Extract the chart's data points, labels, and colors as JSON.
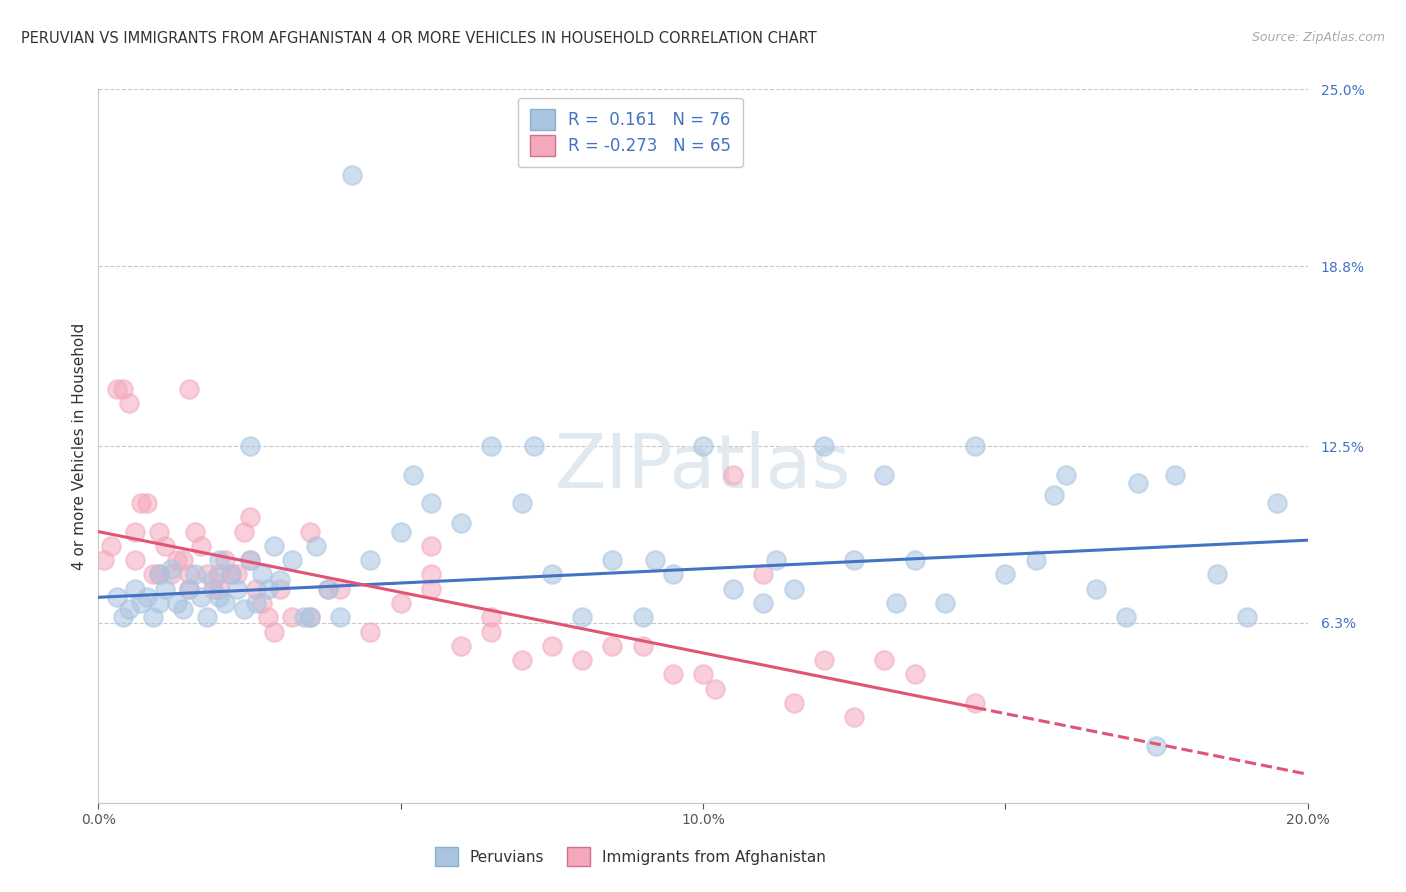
{
  "title": "PERUVIAN VS IMMIGRANTS FROM AFGHANISTAN 4 OR MORE VEHICLES IN HOUSEHOLD CORRELATION CHART",
  "source": "Source: ZipAtlas.com",
  "ylabel": "4 or more Vehicles in Household",
  "legend_labels": [
    "Peruvians",
    "Immigrants from Afghanistan"
  ],
  "blue_R": 0.161,
  "blue_N": 76,
  "pink_R": -0.273,
  "pink_N": 65,
  "xlim": [
    0.0,
    20.0
  ],
  "ylim": [
    0.0,
    25.0
  ],
  "ytick_vals": [
    0.0,
    6.3,
    12.5,
    18.8,
    25.0
  ],
  "ytick_labels": [
    "",
    "6.3%",
    "12.5%",
    "18.8%",
    "25.0%"
  ],
  "xtick_vals": [
    0.0,
    5.0,
    10.0,
    15.0,
    20.0
  ],
  "xtick_labels": [
    "0.0%",
    "",
    "10.0%",
    "",
    "20.0%"
  ],
  "blue_color": "#a8c4e0",
  "pink_color": "#f4a8bc",
  "blue_line_color": "#4472c4",
  "pink_line_color": "#e05575",
  "bg_color": "#ffffff",
  "grid_color": "#c8c8c8",
  "blue_x": [
    0.3,
    0.4,
    0.5,
    0.6,
    0.7,
    0.8,
    0.9,
    1.0,
    1.0,
    1.1,
    1.2,
    1.3,
    1.4,
    1.5,
    1.6,
    1.7,
    1.8,
    1.9,
    2.0,
    2.0,
    2.1,
    2.2,
    2.3,
    2.4,
    2.5,
    2.6,
    2.7,
    2.8,
    2.9,
    3.0,
    3.2,
    3.4,
    3.6,
    3.8,
    4.0,
    4.5,
    5.0,
    5.5,
    6.0,
    6.5,
    7.0,
    7.5,
    8.0,
    8.5,
    9.0,
    9.5,
    10.0,
    10.5,
    11.0,
    11.5,
    12.0,
    12.5,
    13.0,
    13.5,
    14.0,
    14.5,
    15.0,
    15.5,
    16.0,
    16.5,
    17.0,
    17.5,
    17.8,
    18.5,
    19.0,
    19.5,
    2.5,
    3.5,
    5.2,
    7.2,
    9.2,
    11.2,
    13.2,
    15.8,
    17.2,
    4.2
  ],
  "blue_y": [
    7.2,
    6.5,
    6.8,
    7.5,
    7.0,
    7.2,
    6.5,
    8.0,
    7.0,
    7.5,
    8.2,
    7.0,
    6.8,
    7.5,
    8.0,
    7.2,
    6.5,
    7.8,
    8.5,
    7.2,
    7.0,
    8.0,
    7.5,
    6.8,
    8.5,
    7.0,
    8.0,
    7.5,
    9.0,
    7.8,
    8.5,
    6.5,
    9.0,
    7.5,
    6.5,
    8.5,
    9.5,
    10.5,
    9.8,
    12.5,
    10.5,
    8.0,
    6.5,
    8.5,
    6.5,
    8.0,
    12.5,
    7.5,
    7.0,
    7.5,
    12.5,
    8.5,
    11.5,
    8.5,
    7.0,
    12.5,
    8.0,
    8.5,
    11.5,
    7.5,
    6.5,
    2.0,
    11.5,
    8.0,
    6.5,
    10.5,
    12.5,
    6.5,
    11.5,
    12.5,
    8.5,
    8.5,
    7.0,
    10.8,
    11.2,
    22.0
  ],
  "pink_x": [
    0.1,
    0.2,
    0.3,
    0.4,
    0.5,
    0.6,
    0.6,
    0.7,
    0.8,
    0.9,
    1.0,
    1.0,
    1.1,
    1.2,
    1.3,
    1.4,
    1.5,
    1.5,
    1.6,
    1.7,
    1.8,
    1.9,
    2.0,
    2.0,
    2.1,
    2.2,
    2.3,
    2.4,
    2.5,
    2.6,
    2.7,
    2.8,
    2.9,
    3.0,
    3.2,
    3.5,
    3.8,
    4.0,
    4.5,
    5.0,
    5.5,
    6.0,
    6.5,
    7.0,
    7.5,
    8.0,
    9.0,
    10.0,
    10.5,
    11.0,
    12.0,
    13.0,
    14.5,
    1.5,
    2.5,
    3.5,
    5.5,
    6.5,
    8.5,
    9.5,
    10.2,
    11.5,
    12.5,
    5.5,
    13.5
  ],
  "pink_y": [
    8.5,
    9.0,
    14.5,
    14.5,
    14.0,
    9.5,
    8.5,
    10.5,
    10.5,
    8.0,
    9.5,
    8.0,
    9.0,
    8.0,
    8.5,
    8.5,
    8.0,
    7.5,
    9.5,
    9.0,
    8.0,
    7.5,
    8.0,
    7.5,
    8.5,
    8.0,
    8.0,
    9.5,
    8.5,
    7.5,
    7.0,
    6.5,
    6.0,
    7.5,
    6.5,
    6.5,
    7.5,
    7.5,
    6.0,
    7.0,
    7.5,
    5.5,
    6.5,
    5.0,
    5.5,
    5.0,
    5.5,
    4.5,
    11.5,
    8.0,
    5.0,
    5.0,
    3.5,
    14.5,
    10.0,
    9.5,
    9.0,
    6.0,
    5.5,
    4.5,
    4.0,
    3.5,
    3.0,
    8.0,
    4.5
  ],
  "blue_trend_x0": 0.0,
  "blue_trend_y0": 7.2,
  "blue_trend_x1": 20.0,
  "blue_trend_y1": 9.2,
  "pink_trend_x0": 0.0,
  "pink_trend_y0": 9.5,
  "pink_trend_x1": 20.0,
  "pink_trend_y1": 1.0,
  "pink_solid_end": 14.5
}
